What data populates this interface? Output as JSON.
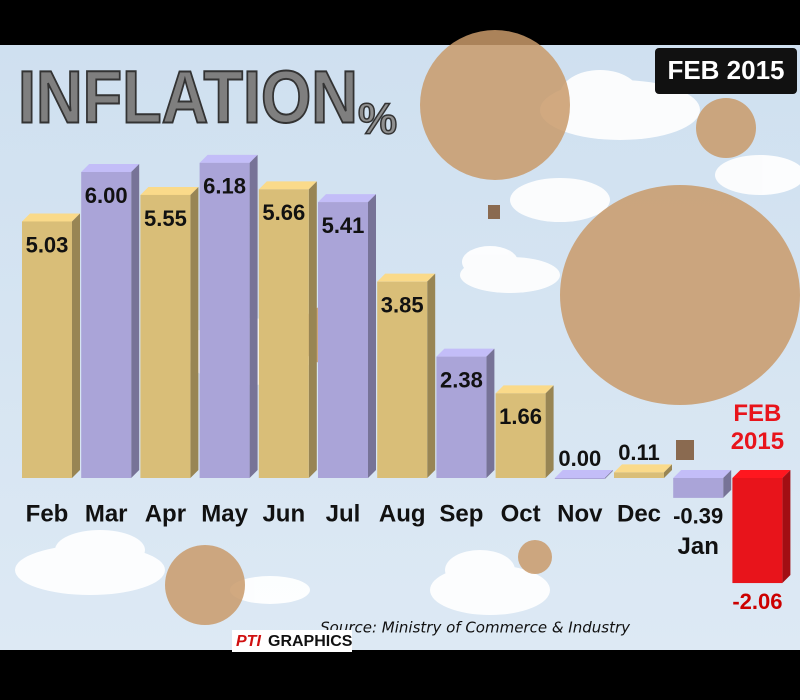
{
  "chart_data": {
    "type": "bar",
    "title": "INFLATION",
    "unit": "%",
    "badge": "FEB 2015",
    "source": "Source: Ministry of Commerce & Industry",
    "brand": [
      "PTI",
      "GRAPHICS"
    ],
    "categories": [
      "Feb",
      "Mar",
      "Apr",
      "May",
      "Jun",
      "Jul",
      "Aug",
      "Sep",
      "Oct",
      "Nov",
      "Dec",
      "Jan",
      "FEB 2015"
    ],
    "values": [
      5.03,
      6.0,
      5.55,
      6.18,
      5.66,
      5.41,
      3.85,
      2.38,
      1.66,
      0.0,
      0.11,
      -0.39,
      -2.06
    ],
    "value_labels": [
      "5.03",
      "6.00",
      "5.55",
      "6.18",
      "5.66",
      "5.41",
      "3.85",
      "2.38",
      "1.66",
      "0.00",
      "0.11",
      "-0.39",
      "-2.06"
    ],
    "colors": [
      "#d9be78",
      "#aaa4d8",
      "#d9be78",
      "#aaa4d8",
      "#d9be78",
      "#aaa4d8",
      "#d9be78",
      "#aaa4d8",
      "#d9be78",
      "#aaa4d8",
      "#d9be78",
      "#aaa4d8",
      "#e8141b"
    ]
  }
}
